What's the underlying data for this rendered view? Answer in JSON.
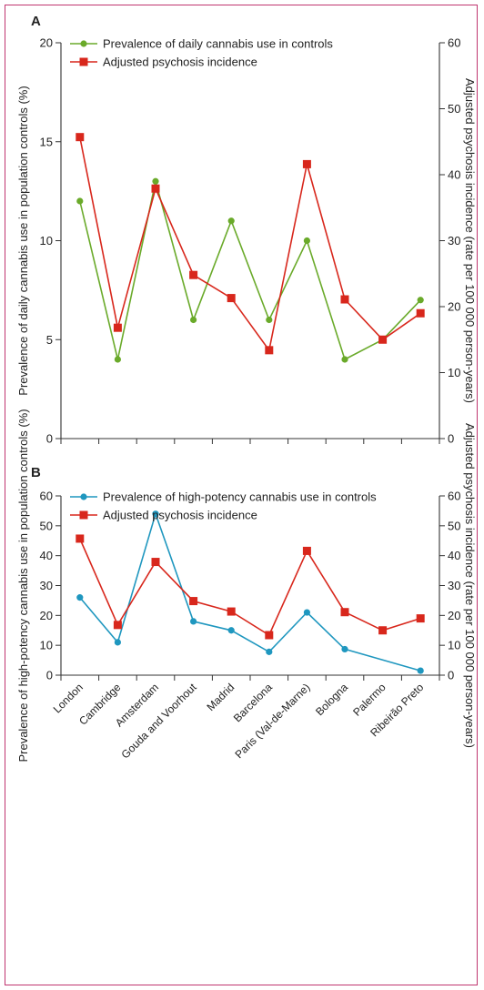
{
  "chart_data": [
    {
      "panel": "A",
      "type": "line",
      "categories": [
        "London",
        "Cambridge",
        "Amsterdam",
        "Gouda and Voorhout",
        "Madrid",
        "Barcelona",
        "Paris (Val-de-Marne)",
        "Bologna",
        "Palermo",
        "Ribeirão Preto"
      ],
      "ylabel": "Prevalence of daily cannabis use in population controls (%)",
      "y2label": "Adjusted psychosis incidence (rate per 100 000 person-years)",
      "ylim": [
        0,
        20
      ],
      "y2lim": [
        0,
        60
      ],
      "yticks": [
        0,
        5,
        10,
        15,
        20
      ],
      "y2ticks": [
        0,
        10,
        20,
        30,
        40,
        50,
        60
      ],
      "legend_position": "top-left",
      "series": [
        {
          "name": "Prevalence of daily cannabis use in controls",
          "axis": "left",
          "color": "#6aaa2a",
          "marker": "circle",
          "values": [
            12,
            4,
            13,
            6,
            11,
            6,
            10,
            4,
            5,
            7
          ]
        },
        {
          "name": "Adjusted psychosis incidence",
          "axis": "right",
          "color": "#d8271c",
          "marker": "square",
          "values": [
            45.7,
            16.8,
            37.9,
            24.8,
            21.3,
            13.4,
            41.6,
            21.1,
            15.0,
            19.0
          ]
        }
      ]
    },
    {
      "panel": "B",
      "type": "line",
      "categories": [
        "London",
        "Cambridge",
        "Amsterdam",
        "Gouda and Voorhout",
        "Madrid",
        "Barcelona",
        "Paris (Val-de-Marne)",
        "Bologna",
        "Palermo",
        "Ribeirão Preto"
      ],
      "ylabel": "Prevalence of high-potency cannabis use in population controls (%)",
      "y2label": "Adjusted psychosis incidence (rate per 100 000 person-years)",
      "ylim": [
        0,
        60
      ],
      "y2lim": [
        0,
        60
      ],
      "yticks": [
        0,
        10,
        20,
        30,
        40,
        50,
        60
      ],
      "y2ticks": [
        0,
        10,
        20,
        30,
        40,
        50,
        60
      ],
      "legend_position": "top-left",
      "series": [
        {
          "name": "Prevalence of high-potency cannabis use in controls",
          "axis": "left",
          "color": "#1f97bf",
          "marker": "circle",
          "values": [
            26,
            11,
            54,
            18,
            15,
            7.8,
            21,
            8.7,
            null,
            1.5
          ]
        },
        {
          "name": "Adjusted psychosis incidence",
          "axis": "right",
          "color": "#d8271c",
          "marker": "square",
          "values": [
            45.7,
            16.8,
            37.9,
            24.8,
            21.3,
            13.4,
            41.6,
            21.1,
            15.0,
            19.0
          ]
        }
      ]
    }
  ]
}
